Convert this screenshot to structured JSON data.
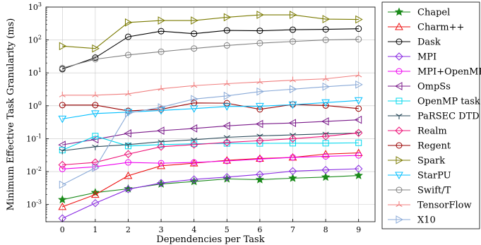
{
  "chart_data": {
    "type": "line",
    "title": "",
    "xlabel": "Dependencies per Task",
    "ylabel": "Minimum Effective Task Granularity (ms)",
    "x": [
      0,
      1,
      2,
      3,
      4,
      5,
      6,
      7,
      8,
      9
    ],
    "xticks": [
      "0",
      "1",
      "2",
      "3",
      "4",
      "5",
      "6",
      "7",
      "8",
      "9"
    ],
    "y_scale": "log",
    "ylim": [
      0.0003,
      1000
    ],
    "yticks": [
      {
        "value": 0.001,
        "base": "10",
        "exp": "-3"
      },
      {
        "value": 0.01,
        "base": "10",
        "exp": "-2"
      },
      {
        "value": 0.1,
        "base": "10",
        "exp": "-1"
      },
      {
        "value": 1,
        "base": "10",
        "exp": "0"
      },
      {
        "value": 10,
        "base": "10",
        "exp": "1"
      },
      {
        "value": 100,
        "base": "10",
        "exp": "2"
      },
      {
        "value": 1000,
        "base": "10",
        "exp": "3"
      }
    ],
    "grid": true,
    "legend_position": "right-outside",
    "series": [
      {
        "name": "Chapel",
        "color": "#1a8a1a",
        "marker": "star",
        "values": [
          0.0014,
          0.0023,
          0.003,
          0.0042,
          0.005,
          0.006,
          0.0057,
          0.0063,
          0.0068,
          0.0076
        ]
      },
      {
        "name": "Charm++",
        "color": "#ee1111",
        "marker": "triangle-up",
        "values": [
          0.00085,
          0.002,
          0.0075,
          0.015,
          0.018,
          0.022,
          0.025,
          0.027,
          0.034,
          0.037
        ]
      },
      {
        "name": "Dask",
        "color": "#000000",
        "marker": "circle",
        "values": [
          13,
          29,
          125,
          185,
          155,
          195,
          190,
          205,
          210,
          220
        ]
      },
      {
        "name": "MPI",
        "color": "#8a2be2",
        "marker": "diamond",
        "values": [
          0.00038,
          0.0011,
          0.0029,
          0.0045,
          0.0058,
          0.0068,
          0.0082,
          0.0103,
          0.0112,
          0.0122
        ]
      },
      {
        "name": "MPI+OpenMP",
        "color": "#ee00ee",
        "marker": "circle",
        "values": [
          0.012,
          0.014,
          0.019,
          0.018,
          0.019,
          0.021,
          0.024,
          0.027,
          0.029,
          0.031
        ]
      },
      {
        "name": "OmpSs",
        "color": "#7a1a8a",
        "marker": "triangle-left",
        "values": [
          0.065,
          0.095,
          0.145,
          0.175,
          0.205,
          0.245,
          0.28,
          0.3,
          0.335,
          0.375
        ]
      },
      {
        "name": "OpenMP task",
        "color": "#00d8ee",
        "marker": "square",
        "values": [
          0.045,
          0.12,
          0.06,
          0.066,
          0.07,
          0.072,
          0.072,
          0.073,
          0.073,
          0.075
        ]
      },
      {
        "name": "PaRSEC DTD",
        "color": "#2a4a5a",
        "marker": "tri-down",
        "values": [
          0.043,
          0.057,
          0.066,
          0.081,
          0.093,
          0.11,
          0.122,
          0.13,
          0.14,
          0.148
        ]
      },
      {
        "name": "Realm",
        "color": "#ee1177",
        "marker": "diamond",
        "values": [
          0.016,
          0.019,
          0.034,
          0.057,
          0.066,
          0.077,
          0.087,
          0.1,
          0.118,
          0.15
        ]
      },
      {
        "name": "Regent",
        "color": "#990000",
        "marker": "circle",
        "values": [
          1.05,
          1.05,
          0.7,
          0.78,
          1.22,
          1.2,
          0.78,
          1.1,
          1.02,
          0.82
        ]
      },
      {
        "name": "Spark",
        "color": "#7a7a00",
        "marker": "triangle-right",
        "values": [
          65,
          55,
          340,
          390,
          390,
          490,
          580,
          580,
          430,
          420
        ]
      },
      {
        "name": "StarPU",
        "color": "#00bfff",
        "marker": "triangle-down",
        "values": [
          0.4,
          0.58,
          0.64,
          0.72,
          0.82,
          0.95,
          0.97,
          1.08,
          1.25,
          1.45
        ]
      },
      {
        "name": "Swift/T",
        "color": "#808080",
        "marker": "circle",
        "values": [
          14,
          26,
          35,
          44,
          55,
          68,
          80,
          90,
          100,
          105
        ]
      },
      {
        "name": "TensorFlow",
        "color": "#f08080",
        "marker": "tri-up",
        "values": [
          2.1,
          2.1,
          2.3,
          3.3,
          4.1,
          4.7,
          5.3,
          6.0,
          6.6,
          8.5
        ]
      },
      {
        "name": "X10",
        "color": "#8aaad8",
        "marker": "triangle-right",
        "values": [
          0.004,
          0.013,
          0.6,
          0.9,
          1.6,
          2.0,
          2.7,
          3.2,
          3.8,
          4.4
        ]
      }
    ]
  }
}
